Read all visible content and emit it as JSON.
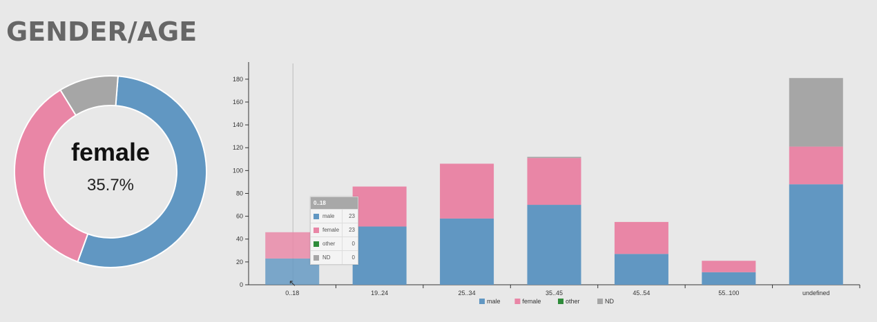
{
  "header": {
    "title": "GENDER/AGE"
  },
  "donut": {
    "center_label": "female",
    "center_value": "35.7%",
    "slices": [
      {
        "name": "male",
        "value": 54.3,
        "color": "#6197c2"
      },
      {
        "name": "female",
        "value": 35.7,
        "color": "#e986a6"
      },
      {
        "name": "ND",
        "value": 10.0,
        "color": "#a6a6a6"
      }
    ]
  },
  "tooltip": {
    "title": "0..18",
    "rows": [
      {
        "label": "male",
        "value": "23",
        "color": "#6197c2"
      },
      {
        "label": "female",
        "value": "23",
        "color": "#e986a6"
      },
      {
        "label": "other",
        "value": "0",
        "color": "#2e8b3a"
      },
      {
        "label": "ND",
        "value": "0",
        "color": "#a6a6a6"
      }
    ]
  },
  "chart_data": {
    "type": "bar",
    "stacked": true,
    "categories": [
      "0..18",
      "19..24",
      "25..34",
      "35..45",
      "45..54",
      "55..100",
      "undefined"
    ],
    "series": [
      {
        "name": "male",
        "values": [
          23,
          51,
          58,
          70,
          27,
          11,
          88
        ],
        "color": "#6197c2"
      },
      {
        "name": "female",
        "values": [
          23,
          35,
          48,
          41,
          28,
          10,
          33
        ],
        "color": "#e986a6"
      },
      {
        "name": "other",
        "values": [
          0,
          0,
          0,
          0,
          0,
          0,
          0
        ],
        "color": "#2e8b3a"
      },
      {
        "name": "ND",
        "values": [
          0,
          0,
          0,
          1,
          0,
          0,
          60
        ],
        "color": "#a6a6a6"
      }
    ],
    "ylim": [
      0,
      195
    ],
    "yticks": [
      0,
      20,
      40,
      60,
      80,
      100,
      120,
      140,
      160,
      180
    ],
    "legend_position": "bottom-center",
    "grid": false,
    "highlighted_category": "0..18"
  }
}
